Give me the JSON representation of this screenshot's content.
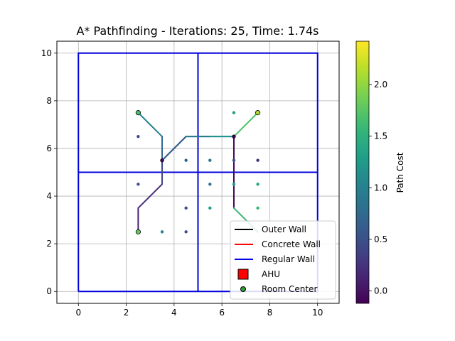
{
  "chart_data": {
    "type": "line",
    "title": "A* Pathfinding - Iterations: 25, Time: 1.74s",
    "xlabel": "",
    "ylabel": "",
    "xlim": [
      -0.9,
      10.9
    ],
    "ylim": [
      -0.5,
      10.5
    ],
    "x_ticks": [
      0,
      2,
      4,
      6,
      8,
      10
    ],
    "y_ticks": [
      0,
      2,
      4,
      6,
      8,
      10
    ],
    "grid": true,
    "legend_position": "lower-right",
    "walls": [
      {
        "type": "Regular Wall",
        "color": "#0000dd",
        "x": [
          0,
          10,
          10,
          0,
          0
        ],
        "y": [
          0,
          0,
          10,
          10,
          0
        ]
      },
      {
        "type": "Regular Wall",
        "color": "#0000dd",
        "x": [
          5,
          5
        ],
        "y": [
          0,
          10
        ]
      },
      {
        "type": "Regular Wall",
        "color": "#0000dd",
        "x": [
          0,
          10
        ],
        "y": [
          5,
          5
        ]
      }
    ],
    "nodes": [
      {
        "x": 2.5,
        "y": 6.5,
        "cost": 0.5
      },
      {
        "x": 2.5,
        "y": 4.5,
        "cost": 0.5
      },
      {
        "x": 3.5,
        "y": 2.5,
        "cost": 1.0
      },
      {
        "x": 4.5,
        "y": 5.5,
        "cost": 0.7
      },
      {
        "x": 4.5,
        "y": 3.5,
        "cost": 0.5
      },
      {
        "x": 4.5,
        "y": 2.5,
        "cost": 0.5
      },
      {
        "x": 5.5,
        "y": 5.5,
        "cost": 0.9
      },
      {
        "x": 5.5,
        "y": 4.5,
        "cost": 0.8
      },
      {
        "x": 5.5,
        "y": 3.5,
        "cost": 1.3
      },
      {
        "x": 6.5,
        "y": 7.5,
        "cost": 1.3
      },
      {
        "x": 6.5,
        "y": 5.5,
        "cost": 0.5
      },
      {
        "x": 6.5,
        "y": 4.5,
        "cost": 1.3
      },
      {
        "x": 7.5,
        "y": 5.5,
        "cost": 0.3
      },
      {
        "x": 7.5,
        "y": 4.5,
        "cost": 1.4
      },
      {
        "x": 7.5,
        "y": 3.5,
        "cost": 1.6
      }
    ],
    "paths": [
      [
        {
          "x": 2.5,
          "y": 7.5,
          "cost": 1.0
        },
        {
          "x": 3.5,
          "y": 6.5,
          "cost": 0.7
        },
        {
          "x": 3.5,
          "y": 5.5,
          "cost": -0.1
        },
        {
          "x": 4.5,
          "y": 6.5,
          "cost": 1.0
        },
        {
          "x": 5.5,
          "y": 6.5,
          "cost": 1.3
        },
        {
          "x": 6.5,
          "y": 6.5,
          "cost": 1.7
        },
        {
          "x": 7.5,
          "y": 7.5,
          "cost": 2.1
        }
      ],
      [
        {
          "x": 2.5,
          "y": 2.5,
          "cost": 0.1
        },
        {
          "x": 2.5,
          "y": 3.5,
          "cost": 0.2
        },
        {
          "x": 3.5,
          "y": 4.5,
          "cost": 0.4
        },
        {
          "x": 3.5,
          "y": 5.5,
          "cost": 0.7
        },
        {
          "x": 4.5,
          "y": 6.5,
          "cost": 0.9
        },
        {
          "x": 5.5,
          "y": 6.5,
          "cost": 1.2
        },
        {
          "x": 6.5,
          "y": 6.5,
          "cost": -0.1
        },
        {
          "x": 6.5,
          "y": 3.5,
          "cost": 1.6
        },
        {
          "x": 7.5,
          "y": 2.5,
          "cost": 1.8
        }
      ]
    ],
    "room_centers": [
      {
        "x": 2.5,
        "y": 7.5,
        "cost": 1.7
      },
      {
        "x": 7.5,
        "y": 7.5,
        "cost": 2.1
      },
      {
        "x": 2.5,
        "y": 2.5,
        "cost": 1.8
      }
    ],
    "path_endpoints": [
      {
        "x": 3.5,
        "y": 5.5,
        "cost": -0.1
      },
      {
        "x": 6.5,
        "y": 6.5,
        "cost": -0.1
      }
    ],
    "legend": [
      {
        "label": "Outer Wall",
        "kind": "line",
        "color": "#000000"
      },
      {
        "label": "Concrete Wall",
        "kind": "line",
        "color": "#ff0000"
      },
      {
        "label": "Regular Wall",
        "kind": "line",
        "color": "#0000ee"
      },
      {
        "label": "AHU",
        "kind": "square",
        "color": "#ff0000"
      },
      {
        "label": "Room Center",
        "kind": "circle",
        "color": "#2ca02c"
      }
    ],
    "colorbar": {
      "label": "Path Cost",
      "min": -0.12,
      "max": 2.42,
      "ticks": [
        0.0,
        0.5,
        1.0,
        1.5,
        2.0
      ],
      "tick_labels": [
        "0.0",
        "0.5",
        "1.0",
        "1.5",
        "2.0"
      ],
      "colormap": "viridis"
    }
  }
}
